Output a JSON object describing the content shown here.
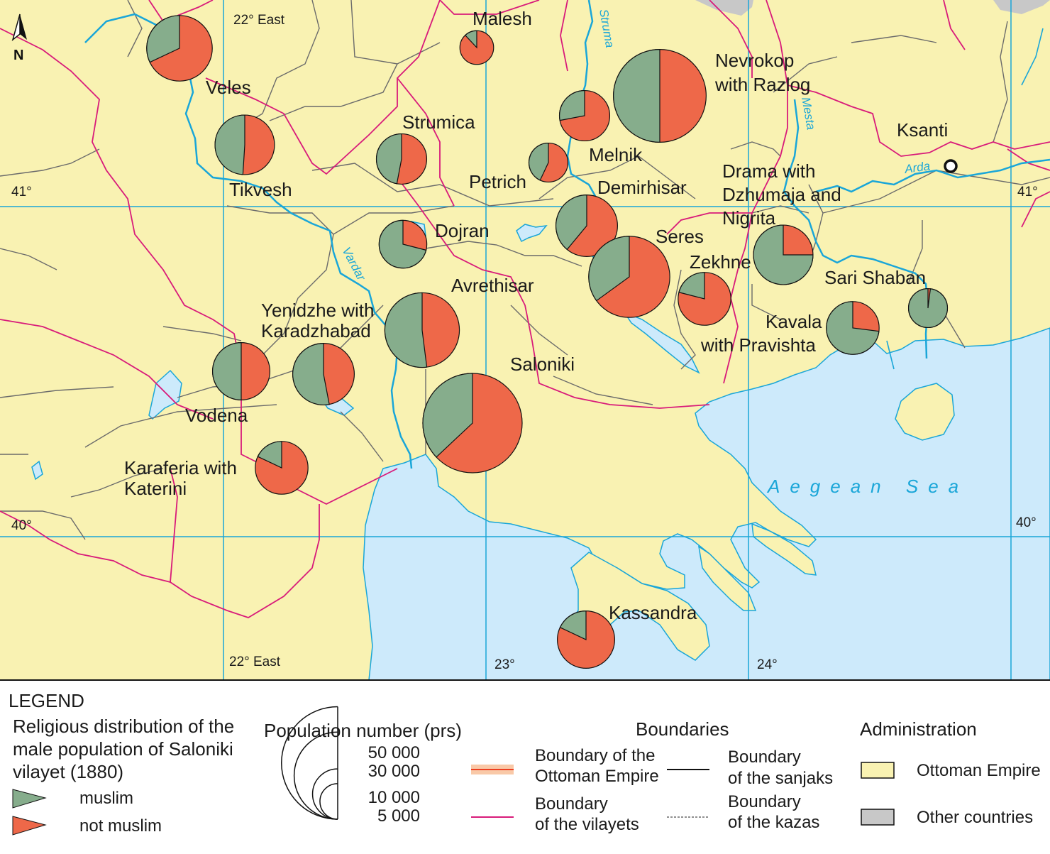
{
  "map": {
    "north_label": "N",
    "sea_label": "Aegean Sea",
    "coords": {
      "lon_22_top": "22° East",
      "lon_22_bottom": "22° East",
      "lon_23": "23°",
      "lon_24": "24°",
      "lat_41_left": "41°",
      "lat_41_right": "41°",
      "lat_40_left": "40°",
      "lat_40_right": "40°"
    },
    "rivers": {
      "struma": "Struma",
      "vardar": "Vardar",
      "mesta": "Mesta",
      "arda": "Arda"
    },
    "city": "Ksanti",
    "colors": {
      "land": "#f9f2b2",
      "other_countries": "#c8c8c8",
      "sea": "#cdeafb",
      "muslim": "#86ad8c",
      "not_muslim": "#ee6849",
      "vilayet_boundary": "#d81b7a",
      "kaza_boundary": "#6b6b6b",
      "river": "#1aa6d8",
      "grid": "#1aa6d8"
    }
  },
  "chart_data": {
    "type": "pie",
    "title": "Religious distribution of the male population of Saloniki vilayet (1880)",
    "series_names": [
      "muslim",
      "not muslim"
    ],
    "size_legend": {
      "title": "Population number (prs)",
      "values": [
        50000,
        30000,
        10000,
        5000
      ],
      "labels": [
        "50 000",
        "30 000",
        "10 000",
        "5 000"
      ]
    },
    "districts": [
      {
        "name": "Malesh",
        "population": 4500,
        "muslim_pct": 12
      },
      {
        "name": "Veles",
        "population": 17000,
        "muslim_pct": 32
      },
      {
        "name": "Tikvesh",
        "population": 14000,
        "muslim_pct": 49
      },
      {
        "name": "Strumica",
        "population": 10000,
        "muslim_pct": 47
      },
      {
        "name": "Melnik",
        "population": 10000,
        "muslim_pct": 28
      },
      {
        "name": "Petrich",
        "population": 6000,
        "muslim_pct": 43
      },
      {
        "name": "Nevrokop with Razlog",
        "population": 34000,
        "muslim_pct": 50
      },
      {
        "name": "Demirhisar",
        "population": 15000,
        "muslim_pct": 39
      },
      {
        "name": "Dojran",
        "population": 9000,
        "muslim_pct": 71
      },
      {
        "name": "Seres",
        "population": 26000,
        "muslim_pct": 35
      },
      {
        "name": "Zekhne",
        "population": 11000,
        "muslim_pct": 21
      },
      {
        "name": "Drama with Dzhumaja and Nigrita",
        "population": 14000,
        "muslim_pct": 75
      },
      {
        "name": "Sari Shaban",
        "population": 6000,
        "muslim_pct": 98
      },
      {
        "name": "Avrethisar",
        "population": 22000,
        "muslim_pct": 52
      },
      {
        "name": "Yenidzhe with Karadzhabad",
        "population": 15000,
        "muslim_pct": 53
      },
      {
        "name": "Vodena",
        "population": 13000,
        "muslim_pct": 50
      },
      {
        "name": "Saloniki",
        "population": 39000,
        "muslim_pct": 37
      },
      {
        "name": "Karaferia with Katerini",
        "population": 11000,
        "muslim_pct": 18
      },
      {
        "name": "Kavala with Pravishta",
        "population": 11000,
        "muslim_pct": 73
      },
      {
        "name": "Kassandra",
        "population": 13000,
        "muslim_pct": 18
      }
    ]
  },
  "legend": {
    "heading": "LEGEND",
    "religion_title_lines": [
      "Religious distribution of the",
      "male population of Saloniki",
      "vilayet (1880)"
    ],
    "muslim": "muslim",
    "not_muslim": "not muslim",
    "population_title": "Population number (prs)",
    "boundaries_title": "Boundaries",
    "ottoman_boundary_lines": [
      "Boundary of the",
      "Ottoman Empire"
    ],
    "vilayet_boundary_lines": [
      "Boundary",
      "of the vilayets"
    ],
    "sanjak_boundary_lines": [
      "Boundary",
      "of the sanjaks"
    ],
    "kaza_boundary_lines": [
      "Boundary",
      "of the kazas"
    ],
    "administration_title": "Administration",
    "ottoman_empire": "Ottoman Empire",
    "other_countries": "Other countries"
  }
}
